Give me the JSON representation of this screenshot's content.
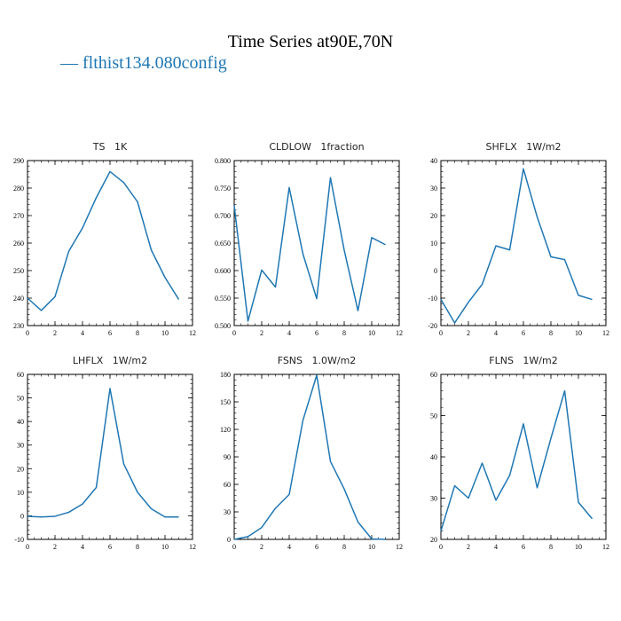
{
  "title": "Time Series at90E,70N",
  "legend": {
    "line": "—",
    "label": "flthist134.080config",
    "color": "#1f77b4"
  },
  "chart_data": [
    {
      "type": "line",
      "title": "TS   1K",
      "x": [
        0,
        1,
        2,
        3,
        4,
        5,
        6,
        7,
        8,
        9,
        10,
        11
      ],
      "series": [
        {
          "values": [
            240,
            235.5,
            240.5,
            257,
            265.5,
            276.5,
            286,
            282,
            275,
            257.5,
            247.5,
            239.5
          ]
        }
      ],
      "xlim": [
        0,
        12
      ],
      "xticks": [
        0,
        2,
        4,
        6,
        8,
        10,
        12
      ],
      "xticklabels": [
        "0",
        "2",
        "4",
        "6",
        "8",
        "10",
        "12"
      ],
      "ylim": [
        230,
        290
      ],
      "yticks": [
        230,
        240,
        250,
        260,
        270,
        280,
        290
      ],
      "yticklabels": [
        "230",
        "240",
        "250",
        "260",
        "270",
        "280",
        "290"
      ]
    },
    {
      "type": "line",
      "title": "CLDLOW   1fraction",
      "x": [
        0,
        1,
        2,
        3,
        4,
        5,
        6,
        7,
        8,
        9,
        10,
        11
      ],
      "series": [
        {
          "values": [
            0.718,
            0.508,
            0.601,
            0.57,
            0.751,
            0.63,
            0.549,
            0.769,
            0.637,
            0.527,
            0.66,
            0.647
          ]
        }
      ],
      "xlim": [
        0,
        12
      ],
      "xticks": [
        0,
        2,
        4,
        6,
        8,
        10,
        12
      ],
      "xticklabels": [
        "0",
        "2",
        "4",
        "6",
        "8",
        "10",
        "12"
      ],
      "ylim": [
        0.5,
        0.8
      ],
      "yticks": [
        0.5,
        0.55,
        0.6,
        0.65,
        0.7,
        0.75,
        0.8
      ],
      "yticklabels": [
        "0.500",
        "0.550",
        "0.600",
        "0.650",
        "0.700",
        "0.750",
        "0.800"
      ]
    },
    {
      "type": "line",
      "title": "SHFLX   1W/m2",
      "x": [
        0,
        1,
        2,
        3,
        4,
        5,
        6,
        7,
        8,
        9,
        10,
        11
      ],
      "series": [
        {
          "values": [
            -10.5,
            -19,
            -11.5,
            -5,
            9,
            7.5,
            37,
            19.5,
            5,
            4,
            -9,
            -10.5
          ]
        }
      ],
      "xlim": [
        0,
        12
      ],
      "xticks": [
        0,
        2,
        4,
        6,
        8,
        10,
        12
      ],
      "xticklabels": [
        "0",
        "2",
        "4",
        "6",
        "8",
        "10",
        "12"
      ],
      "ylim": [
        -20,
        40
      ],
      "yticks": [
        -20,
        -10,
        0,
        10,
        20,
        30,
        40
      ],
      "yticklabels": [
        "-20",
        "-10",
        "0",
        "10",
        "20",
        "30",
        "40"
      ]
    },
    {
      "type": "line",
      "title": "LHFLX   1W/m2",
      "x": [
        0,
        1,
        2,
        3,
        4,
        5,
        6,
        7,
        8,
        9,
        10,
        11
      ],
      "series": [
        {
          "values": [
            -0.2,
            -0.5,
            -0.2,
            1.5,
            5,
            12,
            54,
            22,
            10,
            3,
            -0.5,
            -0.5
          ]
        }
      ],
      "xlim": [
        0,
        12
      ],
      "xticks": [
        0,
        2,
        4,
        6,
        8,
        10,
        12
      ],
      "xticklabels": [
        "0",
        "2",
        "4",
        "6",
        "8",
        "10",
        "12"
      ],
      "ylim": [
        -10,
        60
      ],
      "yticks": [
        -10,
        0,
        10,
        20,
        30,
        40,
        50,
        60
      ],
      "yticklabels": [
        "-10",
        "0",
        "10",
        "20",
        "30",
        "40",
        "50",
        "60"
      ]
    },
    {
      "type": "line",
      "title": "FSNS   1.0W/m2",
      "x": [
        0,
        1,
        2,
        3,
        4,
        5,
        6,
        7,
        8,
        9,
        10,
        11
      ],
      "series": [
        {
          "values": [
            0,
            3,
            13,
            34,
            49,
            130,
            179,
            85,
            55,
            19,
            0.5,
            0
          ]
        }
      ],
      "xlim": [
        0,
        12
      ],
      "xticks": [
        0,
        2,
        4,
        6,
        8,
        10,
        12
      ],
      "xticklabels": [
        "0",
        "2",
        "4",
        "6",
        "8",
        "10",
        "12"
      ],
      "ylim": [
        0,
        180
      ],
      "yticks": [
        0,
        30,
        60,
        90,
        120,
        150,
        180
      ],
      "yticklabels": [
        "0",
        "30",
        "60",
        "90",
        "120",
        "150",
        "180"
      ]
    },
    {
      "type": "line",
      "title": "FLNS   1W/m2",
      "x": [
        0,
        1,
        2,
        3,
        4,
        5,
        6,
        7,
        8,
        9,
        10,
        11
      ],
      "series": [
        {
          "values": [
            22,
            33,
            30,
            38.5,
            29.5,
            35.5,
            48,
            32.5,
            44.5,
            56,
            29,
            25
          ]
        }
      ],
      "xlim": [
        0,
        12
      ],
      "xticks": [
        0,
        2,
        4,
        6,
        8,
        10,
        12
      ],
      "xticklabels": [
        "0",
        "2",
        "4",
        "6",
        "8",
        "10",
        "12"
      ],
      "ylim": [
        20,
        60
      ],
      "yticks": [
        20,
        30,
        40,
        50,
        60
      ],
      "yticklabels": [
        "20",
        "30",
        "40",
        "50",
        "60"
      ]
    }
  ]
}
